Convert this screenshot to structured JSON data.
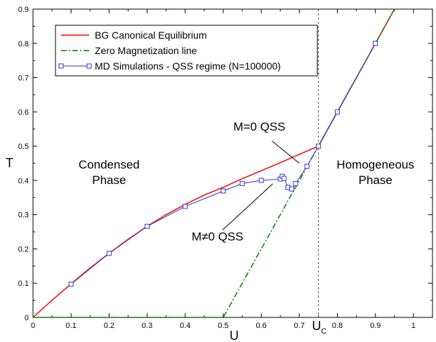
{
  "chart_data": {
    "type": "line",
    "xlabel": "U",
    "ylabel": "T",
    "xlim": [
      0,
      1.05
    ],
    "ylim": [
      0,
      0.9
    ],
    "x_ticks": [
      "0",
      "0.1",
      "0.2",
      "0.3",
      "0.4",
      "0.5",
      "0.6",
      "0.7",
      "0.8",
      "0.9",
      "1"
    ],
    "y_ticks": [
      "0",
      "0.1",
      "0.2",
      "0.3",
      "0.4",
      "0.5",
      "0.6",
      "0.7",
      "0.8",
      "0.9"
    ],
    "uc_label": "U",
    "uc_sub": "C",
    "uc_value": 0.75,
    "legend_position": "top-left",
    "series": [
      {
        "name": "BG Canonical Equilibrium",
        "color": "#ff0000",
        "style": "solid",
        "x": [
          0,
          0.05,
          0.1,
          0.15,
          0.2,
          0.25,
          0.3,
          0.35,
          0.4,
          0.45,
          0.5,
          0.55,
          0.6,
          0.65,
          0.7,
          0.75,
          0.8,
          0.85,
          0.9,
          0.95
        ],
        "y": [
          0,
          0.05,
          0.098,
          0.144,
          0.187,
          0.228,
          0.266,
          0.3,
          0.33,
          0.357,
          0.38,
          0.405,
          0.428,
          0.452,
          0.476,
          0.5,
          0.6,
          0.7,
          0.8,
          0.9
        ]
      },
      {
        "name": "Zero Magnetization line",
        "color": "#008000",
        "style": "dashdot",
        "x": [
          0,
          0.5,
          0.95
        ],
        "y": [
          0,
          0,
          0.9
        ]
      },
      {
        "name": "MD Simulations - QSS regime (N=100000)",
        "color": "#3333cc",
        "marker": "square",
        "x": [
          0.1,
          0.2,
          0.3,
          0.4,
          0.5,
          0.55,
          0.6,
          0.65,
          0.655,
          0.66,
          0.67,
          0.68,
          0.69,
          0.72,
          0.75,
          0.8,
          0.9
        ],
        "y": [
          0.097,
          0.187,
          0.266,
          0.324,
          0.369,
          0.391,
          0.4,
          0.404,
          0.412,
          0.406,
          0.38,
          0.375,
          0.391,
          0.441,
          0.5,
          0.6,
          0.8
        ]
      }
    ],
    "annotations": [
      {
        "text": "Condensed",
        "x": 0.2,
        "y": 0.435
      },
      {
        "text": "Phase",
        "x": 0.2,
        "y": 0.39
      },
      {
        "text": "Homogeneous",
        "x": 0.9,
        "y": 0.435
      },
      {
        "text": "Phase",
        "x": 0.9,
        "y": 0.39
      },
      {
        "text": "M=0 QSS",
        "x": 0.595,
        "y": 0.545
      },
      {
        "text": "M≠0 QSS",
        "x": 0.485,
        "y": 0.225
      }
    ],
    "pointer_lines": [
      {
        "x1": 0.628,
        "y1": 0.515,
        "x2": 0.7,
        "y2": 0.45
      },
      {
        "x1": 0.498,
        "y1": 0.255,
        "x2": 0.63,
        "y2": 0.39
      }
    ]
  }
}
